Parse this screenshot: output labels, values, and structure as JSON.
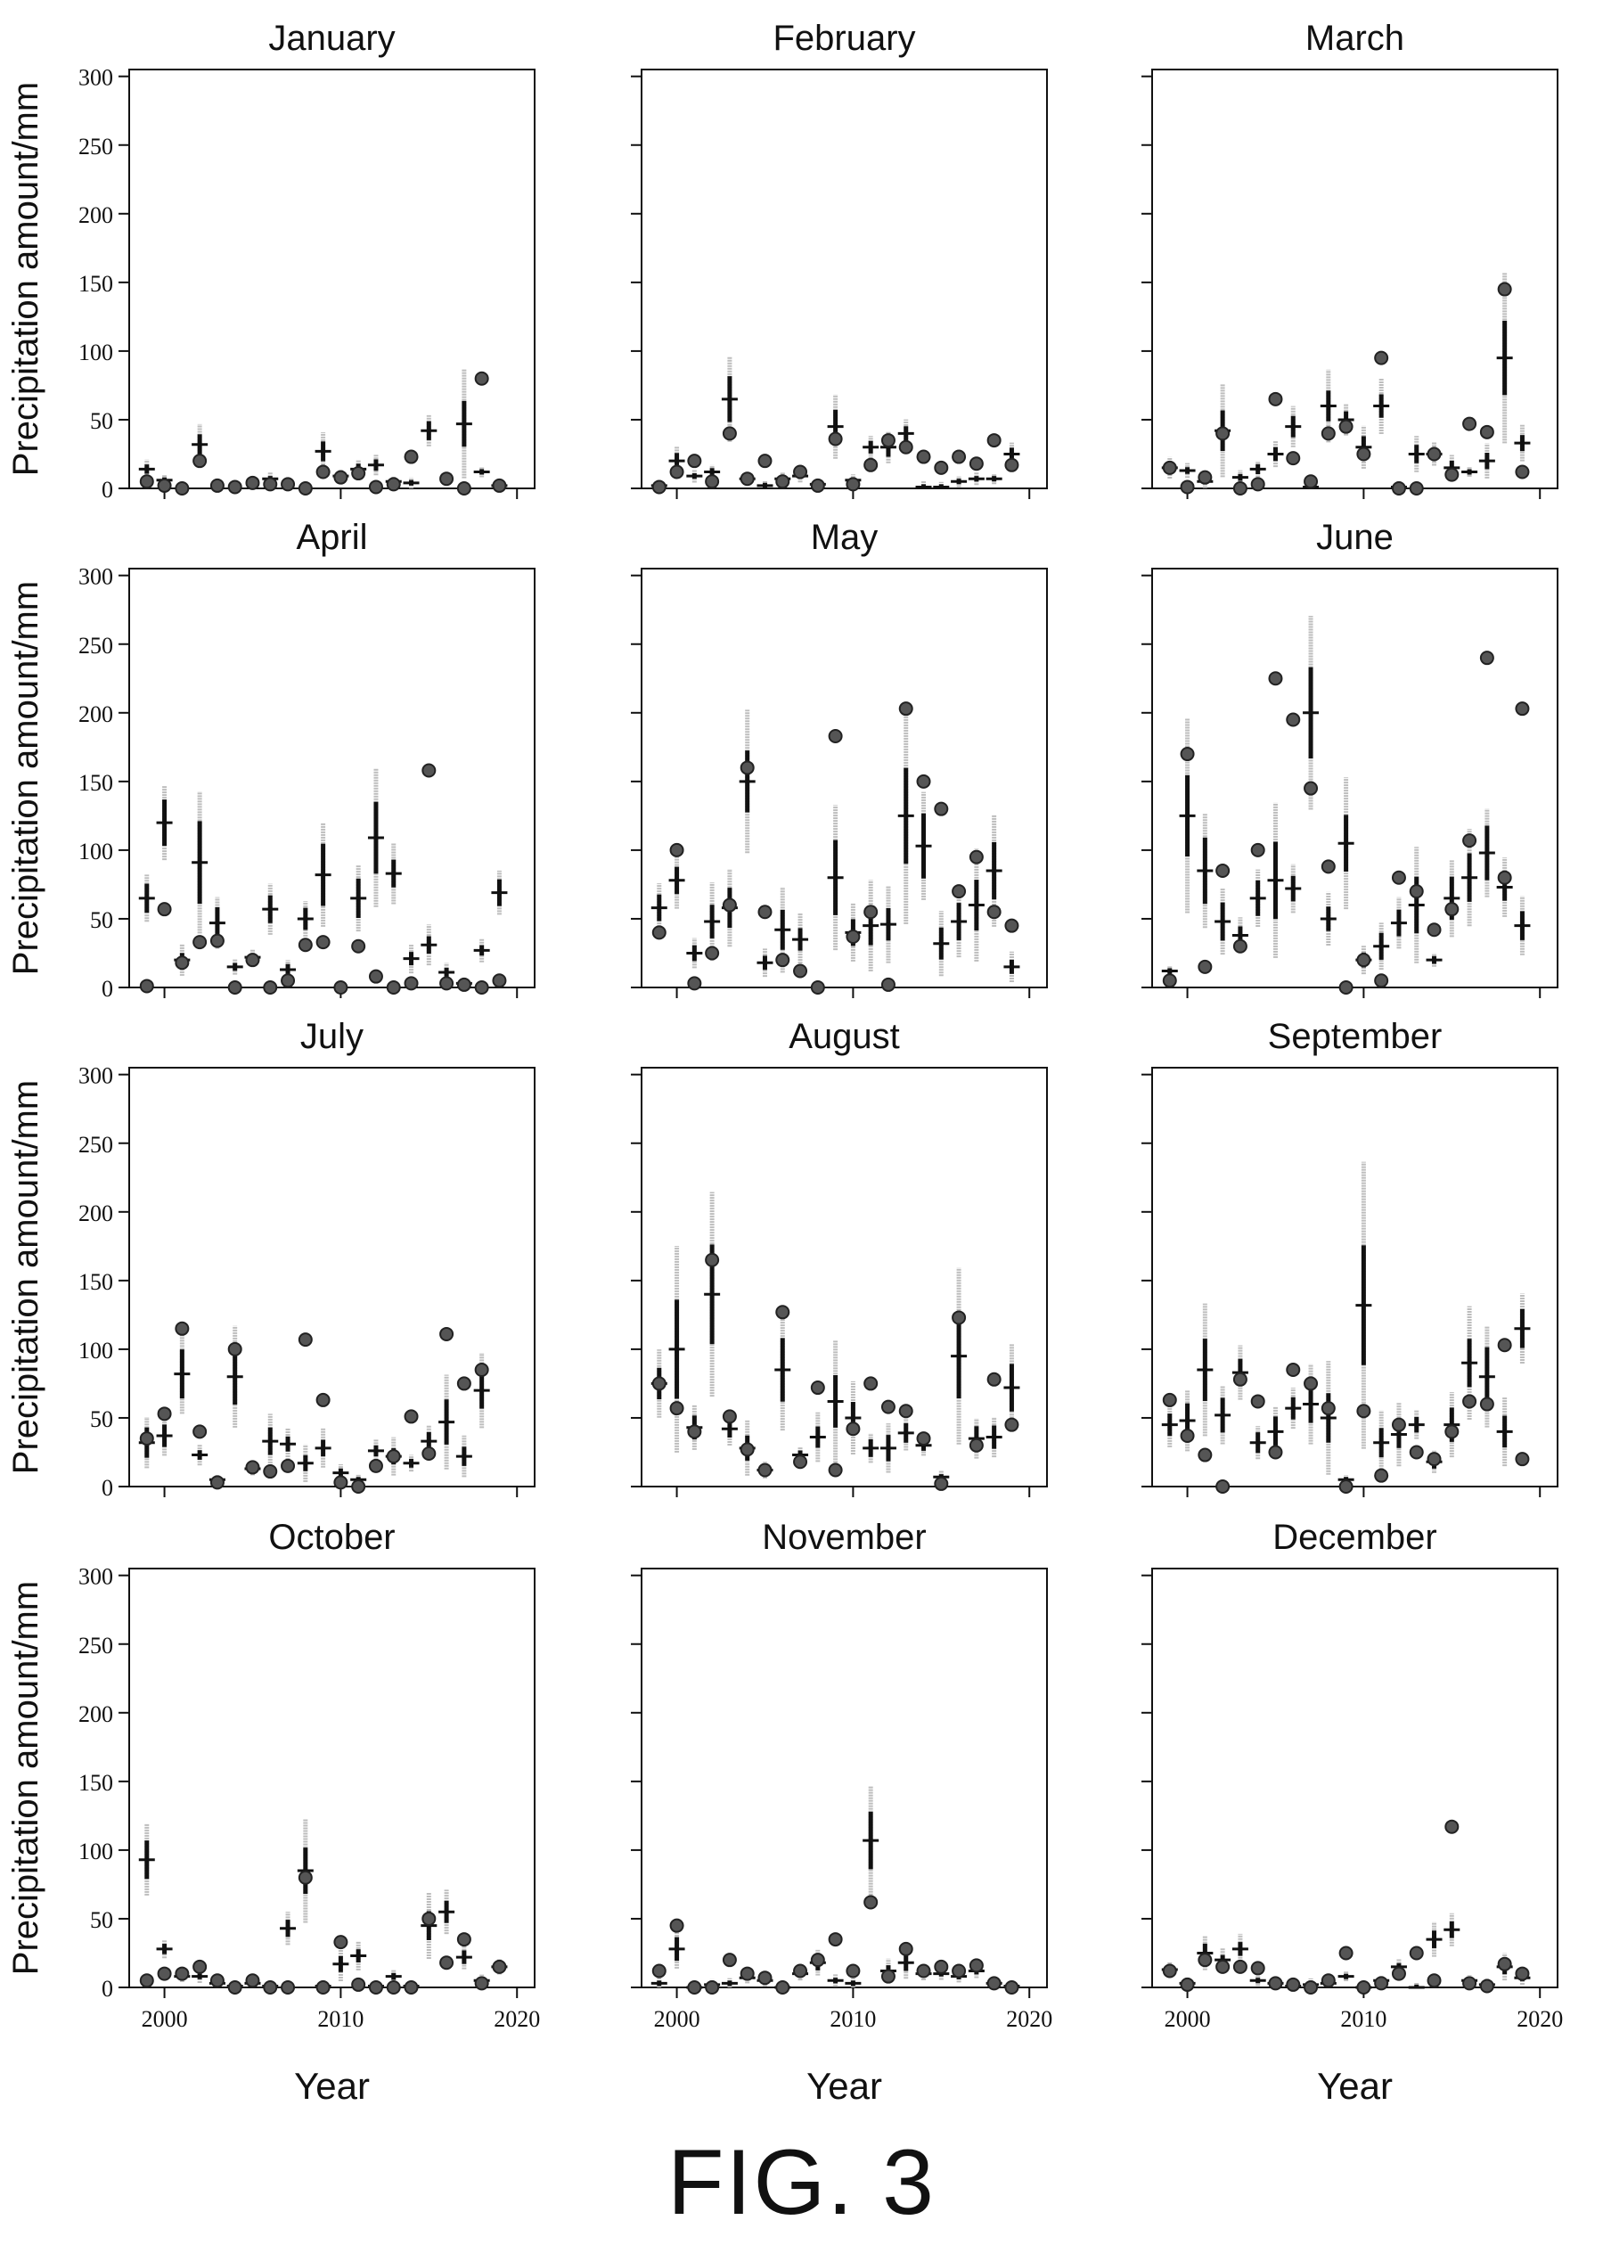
{
  "figure_caption": "FIG. 3",
  "chart_data": {
    "type": "scatter",
    "title": "",
    "xlabel": "Year",
    "ylabel": "Precipitation amount/mm",
    "xlim": [
      1998,
      2021
    ],
    "ylim": [
      0,
      305
    ],
    "x_ticks": [
      2000,
      2010,
      2020
    ],
    "y_ticks": [
      0,
      50,
      100,
      150,
      200,
      250,
      300
    ],
    "grid": false,
    "series_legend": {
      "observed": "filled circle",
      "predicted": "horizontal tick with 50% (black) and 90% (grey) interval bars"
    },
    "years": [
      1999,
      2000,
      2001,
      2002,
      2003,
      2004,
      2005,
      2006,
      2007,
      2008,
      2009,
      2010,
      2011,
      2012,
      2013,
      2014,
      2015,
      2016,
      2017,
      2018,
      2019,
      2020
    ],
    "panels": [
      {
        "title": "January",
        "series": [
          {
            "name": "observed",
            "values": [
              5,
              2,
              0,
              20,
              2,
              1,
              4,
              3,
              3,
              0,
              12,
              8,
              11,
              1,
              3,
              23,
              null,
              7,
              0,
              80,
              2
            ]
          },
          {
            "name": "predicted",
            "values": [
              14,
              6,
              null,
              32,
              null,
              null,
              null,
              7,
              null,
              null,
              27,
              9,
              14,
              17,
              5,
              4,
              42,
              null,
              47,
              12,
              2
            ]
          }
        ]
      },
      {
        "title": "February",
        "series": [
          {
            "name": "observed",
            "values": [
              1,
              12,
              20,
              5,
              40,
              7,
              20,
              5,
              12,
              2,
              36,
              3,
              17,
              35,
              30,
              23,
              15,
              23,
              18,
              35,
              17
            ]
          },
          {
            "name": "predicted",
            "values": [
              2,
              20,
              9,
              12,
              65,
              7,
              2,
              7,
              9,
              3,
              45,
              6,
              30,
              30,
              40,
              1,
              1,
              5,
              7,
              7,
              25
            ]
          }
        ]
      },
      {
        "title": "March",
        "series": [
          {
            "name": "observed",
            "values": [
              15,
              1,
              8,
              40,
              0,
              3,
              65,
              22,
              5,
              40,
              45,
              25,
              95,
              0,
              0,
              25,
              10,
              47,
              41,
              145,
              12
            ]
          },
          {
            "name": "predicted",
            "values": [
              15,
              13,
              5,
              42,
              8,
              14,
              25,
              45,
              1,
              60,
              50,
              30,
              60,
              1,
              25,
              25,
              15,
              12,
              20,
              95,
              33
            ]
          }
        ]
      },
      {
        "title": "April",
        "series": [
          {
            "name": "observed",
            "values": [
              1,
              57,
              18,
              33,
              34,
              0,
              20,
              0,
              5,
              31,
              33,
              0,
              30,
              8,
              0,
              3,
              158,
              3,
              2,
              0,
              5
            ]
          },
          {
            "name": "predicted",
            "values": [
              65,
              120,
              20,
              91,
              47,
              15,
              22,
              57,
              13,
              50,
              82,
              null,
              65,
              109,
              83,
              21,
              31,
              11,
              3,
              27,
              69
            ]
          }
        ]
      },
      {
        "title": "May",
        "series": [
          {
            "name": "observed",
            "values": [
              40,
              100,
              3,
              25,
              60,
              160,
              55,
              20,
              12,
              0,
              183,
              37,
              55,
              2,
              203,
              150,
              130,
              70,
              95,
              55,
              45
            ]
          },
          {
            "name": "predicted",
            "values": [
              58,
              78,
              25,
              48,
              58,
              150,
              18,
              42,
              35,
              null,
              80,
              40,
              45,
              46,
              125,
              103,
              32,
              48,
              60,
              85,
              15
            ]
          }
        ]
      },
      {
        "title": "June",
        "series": [
          {
            "name": "observed",
            "values": [
              5,
              170,
              15,
              85,
              30,
              100,
              225,
              195,
              145,
              88,
              0,
              20,
              5,
              80,
              70,
              42,
              57,
              107,
              240,
              80,
              203
            ]
          },
          {
            "name": "predicted",
            "values": [
              12,
              125,
              85,
              48,
              38,
              65,
              78,
              72,
              200,
              50,
              105,
              20,
              30,
              47,
              60,
              20,
              65,
              80,
              98,
              73,
              45
            ]
          }
        ]
      },
      {
        "title": "July",
        "series": [
          {
            "name": "observed",
            "values": [
              35,
              53,
              115,
              40,
              3,
              100,
              14,
              11,
              15,
              107,
              63,
              3,
              0,
              15,
              22,
              51,
              24,
              111,
              75,
              85,
              null
            ]
          },
          {
            "name": "predicted",
            "values": [
              32,
              37,
              82,
              23,
              5,
              80,
              13,
              33,
              31,
              17,
              28,
              10,
              5,
              26,
              22,
              17,
              33,
              47,
              22,
              70,
              null
            ]
          }
        ]
      },
      {
        "title": "August",
        "series": [
          {
            "name": "observed",
            "values": [
              75,
              57,
              40,
              165,
              51,
              27,
              12,
              127,
              18,
              72,
              12,
              42,
              75,
              58,
              55,
              35,
              2,
              123,
              30,
              78,
              45
            ]
          },
          {
            "name": "predicted",
            "values": [
              75,
              100,
              43,
              140,
              42,
              28,
              12,
              85,
              23,
              36,
              62,
              50,
              28,
              28,
              39,
              30,
              7,
              95,
              35,
              36,
              72
            ]
          }
        ]
      },
      {
        "title": "September",
        "series": [
          {
            "name": "observed",
            "values": [
              63,
              37,
              23,
              0,
              78,
              62,
              25,
              85,
              75,
              57,
              0,
              55,
              8,
              45,
              25,
              20,
              40,
              62,
              60,
              103,
              20
            ]
          },
          {
            "name": "predicted",
            "values": [
              45,
              48,
              85,
              52,
              83,
              32,
              40,
              57,
              60,
              50,
              5,
              132,
              32,
              38,
              45,
              18,
              45,
              90,
              80,
              40,
              115
            ]
          }
        ]
      },
      {
        "title": "October",
        "series": [
          {
            "name": "observed",
            "values": [
              5,
              10,
              10,
              15,
              5,
              0,
              5,
              0,
              0,
              80,
              0,
              33,
              2,
              0,
              0,
              0,
              50,
              18,
              35,
              3,
              15
            ]
          },
          {
            "name": "predicted",
            "values": [
              93,
              28,
              8,
              8,
              3,
              1,
              3,
              1,
              43,
              85,
              1,
              17,
              23,
              1,
              8,
              1,
              45,
              55,
              22,
              5,
              15
            ]
          }
        ]
      },
      {
        "title": "November",
        "series": [
          {
            "name": "observed",
            "values": [
              12,
              45,
              0,
              0,
              20,
              10,
              7,
              0,
              12,
              20,
              35,
              12,
              62,
              8,
              28,
              12,
              15,
              12,
              16,
              3,
              0
            ]
          },
          {
            "name": "predicted",
            "values": [
              3,
              28,
              0,
              2,
              3,
              7,
              5,
              0,
              10,
              18,
              5,
              3,
              107,
              12,
              18,
              10,
              10,
              8,
              12,
              3,
              1
            ]
          }
        ]
      },
      {
        "title": "December",
        "series": [
          {
            "name": "observed",
            "values": [
              12,
              2,
              20,
              15,
              15,
              14,
              3,
              2,
              0,
              5,
              25,
              0,
              3,
              10,
              25,
              5,
              117,
              3,
              1,
              17,
              10
            ]
          },
          {
            "name": "predicted",
            "values": [
              13,
              3,
              25,
              20,
              28,
              5,
              3,
              1,
              2,
              3,
              8,
              0,
              5,
              15,
              0,
              35,
              42,
              5,
              2,
              15,
              7
            ]
          }
        ]
      }
    ]
  }
}
